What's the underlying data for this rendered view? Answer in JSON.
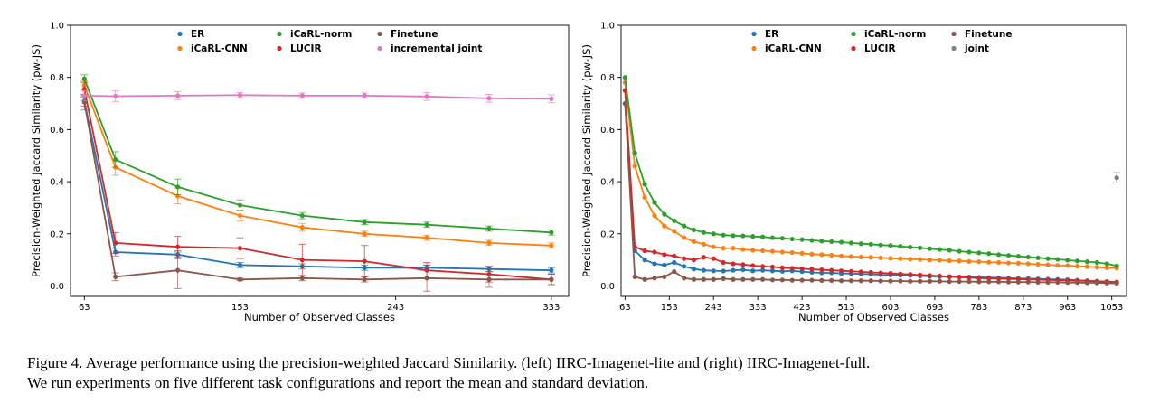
{
  "chart_data": [
    {
      "type": "line",
      "xlabel": "Number of Observed Classes",
      "ylabel": "Precision-Weighted Jaccard Similarity (pw-JS)",
      "xlim": [
        55,
        343
      ],
      "ylim": [
        -0.04,
        1.0
      ],
      "xticks": [
        63,
        153,
        243,
        333
      ],
      "yticks": [
        0.0,
        0.2,
        0.4,
        0.6,
        0.8,
        1.0
      ],
      "x": [
        63,
        81,
        117,
        153,
        189,
        225,
        261,
        297,
        333
      ],
      "legend_order": [
        "ER",
        "iCaRL-CNN",
        "iCaRL-norm",
        "LUCIR",
        "Finetune",
        "incremental joint"
      ],
      "series": [
        {
          "name": "ER",
          "color": "#1f77b4",
          "values": [
            0.71,
            0.13,
            0.12,
            0.08,
            0.075,
            0.07,
            0.07,
            0.065,
            0.06
          ],
          "err": [
            0.02,
            0.015,
            0.015,
            0.01,
            0.01,
            0.01,
            0.01,
            0.01,
            0.01
          ]
        },
        {
          "name": "iCaRL-CNN",
          "color": "#ff7f0e",
          "values": [
            0.77,
            0.455,
            0.345,
            0.27,
            0.225,
            0.2,
            0.185,
            0.165,
            0.155
          ],
          "err": [
            0.02,
            0.03,
            0.03,
            0.02,
            0.015,
            0.01,
            0.01,
            0.01,
            0.01
          ]
        },
        {
          "name": "iCaRL-norm",
          "color": "#2ca02c",
          "values": [
            0.795,
            0.485,
            0.38,
            0.31,
            0.27,
            0.245,
            0.235,
            0.22,
            0.205
          ],
          "err": [
            0.015,
            0.03,
            0.03,
            0.02,
            0.012,
            0.01,
            0.01,
            0.01,
            0.01
          ]
        },
        {
          "name": "LUCIR",
          "color": "#d62728",
          "values": [
            0.755,
            0.165,
            0.15,
            0.145,
            0.1,
            0.095,
            0.06,
            0.045,
            0.025
          ],
          "err": [
            0.03,
            0.04,
            0.04,
            0.04,
            0.06,
            0.06,
            0.03,
            0.03,
            0.02
          ]
        },
        {
          "name": "Finetune",
          "color": "#8c564b",
          "values": [
            0.705,
            0.035,
            0.06,
            0.025,
            0.03,
            0.025,
            0.03,
            0.025,
            0.025
          ],
          "err": [
            0.03,
            0.015,
            0.07,
            0.005,
            0.01,
            0.01,
            0.05,
            0.03,
            0.02
          ]
        },
        {
          "name": "incremental joint",
          "color": "#e377c2",
          "values": [
            0.73,
            0.728,
            0.73,
            0.732,
            0.73,
            0.73,
            0.727,
            0.72,
            0.718
          ],
          "err": [
            0.02,
            0.02,
            0.015,
            0.01,
            0.01,
            0.01,
            0.015,
            0.015,
            0.015
          ]
        }
      ]
    },
    {
      "type": "line",
      "xlabel": "Number of Observed Classes",
      "ylabel": "Precision-Weighted Jaccard Similarity (pw-JS)",
      "xlim": [
        55,
        1083
      ],
      "ylim": [
        -0.04,
        1.0
      ],
      "xticks": [
        63,
        153,
        243,
        333,
        423,
        513,
        603,
        693,
        783,
        873,
        963,
        1053
      ],
      "yticks": [
        0.0,
        0.2,
        0.4,
        0.6,
        0.8,
        1.0
      ],
      "x": [
        63,
        83,
        103,
        123,
        143,
        163,
        183,
        203,
        223,
        243,
        263,
        283,
        303,
        323,
        343,
        363,
        383,
        403,
        423,
        443,
        463,
        483,
        503,
        523,
        543,
        563,
        583,
        603,
        623,
        643,
        663,
        683,
        703,
        723,
        743,
        763,
        783,
        803,
        823,
        843,
        863,
        883,
        903,
        923,
        943,
        963,
        983,
        1003,
        1023,
        1043,
        1063
      ],
      "legend_order": [
        "ER",
        "iCaRL-CNN",
        "iCaRL-norm",
        "LUCIR",
        "Finetune",
        "joint"
      ],
      "series": [
        {
          "name": "ER",
          "color": "#1f77b4",
          "values": [
            0.7,
            0.135,
            0.1,
            0.085,
            0.08,
            0.09,
            0.075,
            0.065,
            0.06,
            0.058,
            0.057,
            0.06,
            0.062,
            0.058,
            0.06,
            0.058,
            0.056,
            0.058,
            0.055,
            0.052,
            0.05,
            0.05,
            0.048,
            0.047,
            0.046,
            0.045,
            0.043,
            0.042,
            0.041,
            0.04,
            0.038,
            0.037,
            0.036,
            0.035,
            0.034,
            0.034,
            0.033,
            0.032,
            0.031,
            0.03,
            0.029,
            0.028,
            0.027,
            0.026,
            0.025,
            0.024,
            0.022,
            0.02,
            0.018,
            0.016,
            0.014
          ]
        },
        {
          "name": "iCaRL-CNN",
          "color": "#ff7f0e",
          "values": [
            0.78,
            0.46,
            0.34,
            0.27,
            0.23,
            0.21,
            0.185,
            0.17,
            0.16,
            0.15,
            0.145,
            0.145,
            0.14,
            0.137,
            0.135,
            0.133,
            0.13,
            0.128,
            0.125,
            0.122,
            0.12,
            0.118,
            0.115,
            0.113,
            0.111,
            0.11,
            0.108,
            0.106,
            0.105,
            0.103,
            0.102,
            0.1,
            0.099,
            0.097,
            0.096,
            0.094,
            0.093,
            0.091,
            0.09,
            0.088,
            0.087,
            0.085,
            0.083,
            0.081,
            0.079,
            0.078,
            0.076,
            0.074,
            0.072,
            0.07,
            0.068
          ]
        },
        {
          "name": "iCaRL-norm",
          "color": "#2ca02c",
          "values": [
            0.8,
            0.51,
            0.39,
            0.32,
            0.275,
            0.25,
            0.23,
            0.215,
            0.205,
            0.2,
            0.195,
            0.193,
            0.192,
            0.19,
            0.188,
            0.185,
            0.183,
            0.18,
            0.178,
            0.175,
            0.172,
            0.17,
            0.168,
            0.165,
            0.162,
            0.16,
            0.157,
            0.155,
            0.152,
            0.149,
            0.146,
            0.143,
            0.14,
            0.137,
            0.133,
            0.13,
            0.127,
            0.124,
            0.12,
            0.117,
            0.114,
            0.111,
            0.108,
            0.105,
            0.102,
            0.099,
            0.096,
            0.093,
            0.09,
            0.085,
            0.077
          ]
        },
        {
          "name": "LUCIR",
          "color": "#d62728",
          "values": [
            0.75,
            0.15,
            0.135,
            0.13,
            0.12,
            0.115,
            0.105,
            0.1,
            0.11,
            0.105,
            0.09,
            0.085,
            0.082,
            0.078,
            0.075,
            0.073,
            0.07,
            0.068,
            0.066,
            0.064,
            0.062,
            0.06,
            0.058,
            0.056,
            0.054,
            0.052,
            0.05,
            0.048,
            0.046,
            0.044,
            0.042,
            0.04,
            0.038,
            0.036,
            0.034,
            0.032,
            0.03,
            0.029,
            0.028,
            0.027,
            0.026,
            0.025,
            0.024,
            0.023,
            0.022,
            0.021,
            0.02,
            0.019,
            0.018,
            0.017,
            0.015
          ]
        },
        {
          "name": "Finetune",
          "color": "#8c564b",
          "values": [
            0.7,
            0.035,
            0.025,
            0.03,
            0.035,
            0.055,
            0.03,
            0.025,
            0.025,
            0.025,
            0.028,
            0.025,
            0.025,
            0.025,
            0.025,
            0.023,
            0.023,
            0.022,
            0.022,
            0.022,
            0.021,
            0.021,
            0.02,
            0.02,
            0.02,
            0.02,
            0.019,
            0.019,
            0.019,
            0.018,
            0.018,
            0.018,
            0.018,
            0.017,
            0.017,
            0.017,
            0.016,
            0.016,
            0.016,
            0.015,
            0.015,
            0.015,
            0.014,
            0.014,
            0.014,
            0.013,
            0.013,
            0.012,
            0.012,
            0.011,
            0.01
          ]
        },
        {
          "name": "joint",
          "color": "#7f7f7f",
          "points": [
            [
              1063,
              0.415
            ]
          ],
          "err": [
            0.02
          ]
        }
      ]
    }
  ],
  "caption": {
    "line1": "Figure 4. Average performance using the precision-weighted Jaccard Similarity. (left) IIRC-Imagenet-lite and (right) IIRC-Imagenet-full.",
    "line2": "We run experiments on five different task configurations and report the mean and standard deviation."
  }
}
